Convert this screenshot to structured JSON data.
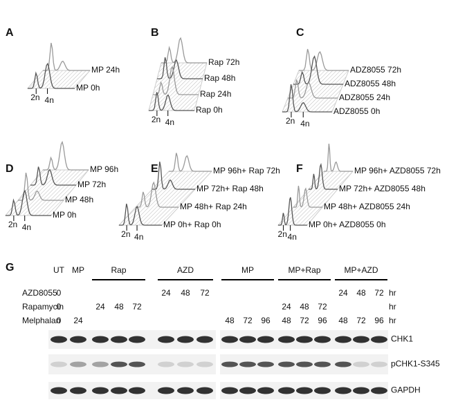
{
  "panels": [
    {
      "letter": "A",
      "axis": [
        "2n",
        "4n"
      ],
      "labels": [
        "MP 24h",
        "MP 0h"
      ]
    },
    {
      "letter": "B",
      "axis": [
        "2n",
        "4n"
      ],
      "labels": [
        "Rap 72h",
        "Rap 48h",
        "Rap 24h",
        "Rap 0h"
      ]
    },
    {
      "letter": "C",
      "axis": [
        "2n",
        "4n"
      ],
      "labels": [
        "ADZ8055 72h",
        "ADZ8055 48h",
        "ADZ8055 24h",
        "ADZ8055 0h"
      ]
    },
    {
      "letter": "D",
      "axis": [
        "2n",
        "4n"
      ],
      "labels": [
        "MP 96h",
        "MP 72h",
        "MP 48h",
        "MP 0h"
      ]
    },
    {
      "letter": "E",
      "axis": [
        "2n",
        "4n"
      ],
      "labels": [
        "MP 96h+ Rap  72h",
        "MP 72h+ Rap 48h",
        "MP 48h+ Rap 24h",
        "MP 0h+ Rap 0h"
      ]
    },
    {
      "letter": "F",
      "axis": [
        "2n",
        "4n"
      ],
      "labels": [
        "MP 96h+ AZD8055  72h",
        "MP 72h+ AZD8055 48h",
        "MP 48h+ AZD8055 24h",
        "MP 0h+ AZD8055 0h"
      ]
    }
  ],
  "blot": {
    "letter": "G",
    "groups": [
      "UT",
      "MP",
      "Rap",
      "AZD",
      "MP",
      "MP+Rap",
      "MP+AZD"
    ],
    "rows": [
      {
        "label": "AZD8055",
        "values": [
          0,
          null,
          null,
          null,
          null,
          24,
          48,
          72,
          null,
          null,
          null,
          null,
          null,
          null,
          24,
          48,
          72
        ],
        "unit": "hr"
      },
      {
        "label": "Rapamycin",
        "values": [
          0,
          null,
          24,
          48,
          72,
          null,
          null,
          null,
          null,
          null,
          null,
          24,
          48,
          72,
          null,
          null,
          null
        ],
        "unit": "hr"
      },
      {
        "label": "Melphalan",
        "values": [
          0,
          24,
          null,
          null,
          null,
          null,
          null,
          null,
          48,
          72,
          96,
          48,
          72,
          96,
          48,
          72,
          96
        ],
        "unit": "hr"
      }
    ],
    "bands": [
      "CHK1",
      "pCHK1-S345",
      "GAPDH"
    ]
  }
}
